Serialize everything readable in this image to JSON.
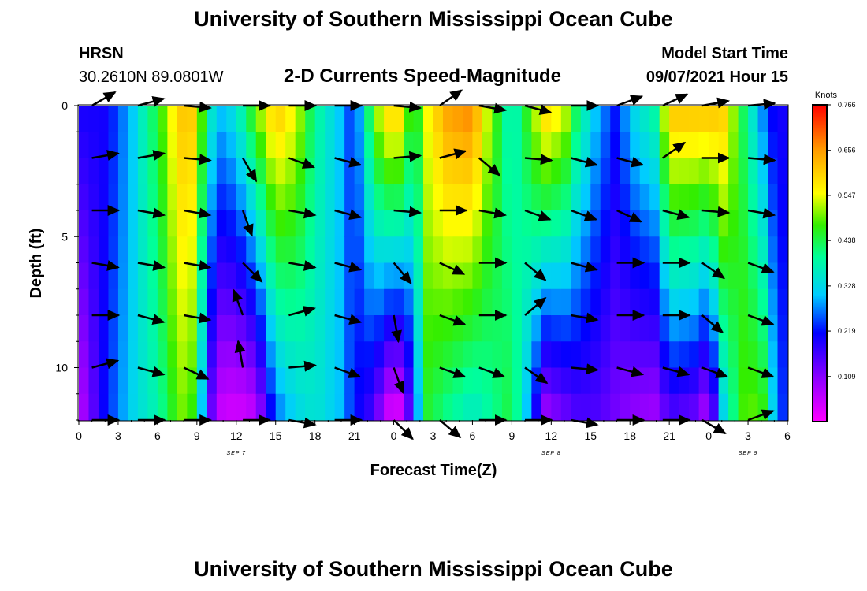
{
  "header": {
    "title": "University of Southern Mississippi Ocean Cube",
    "station_code": "HRSN",
    "coords": "30.2610N  89.0801W",
    "subtitle": "2-D Currents Speed-Magnitude",
    "model_start_label": "Model Start Time",
    "model_start_value": "09/07/2021 Hour 15",
    "footer_title": "University of Southern Mississippi Ocean Cube"
  },
  "chart_data": {
    "type": "heatmap",
    "title": "2-D Currents Speed-Magnitude",
    "xlabel": "Forecast Time(Z)",
    "ylabel": "Depth (ft)",
    "x_tick_labels": [
      "0",
      "3",
      "6",
      "9",
      "12",
      "15",
      "18",
      "21",
      "0",
      "3",
      "6",
      "9",
      "12",
      "15",
      "18",
      "21",
      "0",
      "3",
      "6"
    ],
    "date_labels": [
      "SEP 7",
      "SEP 8",
      "SEP 9"
    ],
    "date_label_tick_index": [
      4,
      12,
      17
    ],
    "y_tick_labels": [
      "0",
      "5",
      "10"
    ],
    "ylim": [
      0,
      12
    ],
    "x_hours": 54,
    "depths": [
      0,
      1,
      2,
      3,
      4,
      5,
      6,
      7,
      8,
      9,
      10,
      11,
      12
    ],
    "colorbar": {
      "title": "Knots",
      "min": 0,
      "max": 0.766,
      "tick_values": [
        0.109,
        0.219,
        0.328,
        0.438,
        0.547,
        0.656,
        0.766
      ],
      "tick_labels": [
        "0.109",
        "0.219",
        "0.328",
        "0.438",
        "0.547",
        "0.656",
        "0.766"
      ]
    },
    "speed_by_time": {
      "hours": [
        0,
        2,
        4,
        5,
        6,
        7,
        8,
        9,
        9.5,
        10.5,
        12,
        13.5,
        15,
        16.5,
        18,
        20,
        21,
        22.5,
        23.5,
        24.5,
        25.5,
        26.5,
        28,
        30,
        31,
        33,
        34.5,
        35.5,
        37,
        38,
        39.5,
        41,
        42,
        44,
        45,
        47,
        48,
        49,
        50.5,
        52,
        53,
        54
      ],
      "surface": [
        0.2,
        0.2,
        0.3,
        0.38,
        0.45,
        0.55,
        0.62,
        0.6,
        0.45,
        0.3,
        0.35,
        0.5,
        0.62,
        0.55,
        0.4,
        0.3,
        0.22,
        0.5,
        0.6,
        0.6,
        0.42,
        0.55,
        0.65,
        0.68,
        0.55,
        0.35,
        0.5,
        0.6,
        0.55,
        0.42,
        0.3,
        0.22,
        0.32,
        0.4,
        0.62,
        0.62,
        0.62,
        0.62,
        0.44,
        0.28,
        0.2,
        0.2
      ],
      "bottom": [
        0.05,
        0.22,
        0.32,
        0.35,
        0.38,
        0.45,
        0.5,
        0.45,
        0.25,
        0.05,
        0.03,
        0.05,
        0.25,
        0.32,
        0.35,
        0.3,
        0.22,
        0.15,
        0.03,
        0.02,
        0.2,
        0.45,
        0.4,
        0.35,
        0.38,
        0.45,
        0.25,
        0.08,
        0.12,
        0.15,
        0.15,
        0.12,
        0.1,
        0.08,
        0.15,
        0.12,
        0.05,
        0.3,
        0.48,
        0.5,
        0.3,
        0.2
      ]
    },
    "current_vectors": {
      "columns_hours": [
        1,
        4.5,
        8,
        12.5,
        16,
        19.5,
        24,
        27.5,
        30.5,
        34,
        37.5,
        41,
        44.5,
        47.5,
        51
      ],
      "rows_depth": [
        0,
        2,
        4,
        6,
        8,
        10,
        12
      ],
      "direction_deg": [
        [
          -30,
          -15,
          5,
          0,
          0,
          0,
          5,
          -35,
          10,
          15,
          0,
          -20,
          -25,
          -10,
          -5
        ],
        [
          -10,
          -10,
          5,
          60,
          20,
          15,
          -5,
          -15,
          40,
          5,
          15,
          15,
          -35,
          0,
          5
        ],
        [
          0,
          10,
          10,
          70,
          10,
          15,
          5,
          0,
          10,
          20,
          20,
          25,
          15,
          5,
          10
        ],
        [
          10,
          10,
          10,
          45,
          10,
          15,
          50,
          25,
          0,
          40,
          15,
          0,
          0,
          35,
          20
        ],
        [
          0,
          15,
          10,
          -110,
          -15,
          15,
          80,
          20,
          0,
          -40,
          10,
          0,
          0,
          40,
          20
        ],
        [
          -15,
          15,
          25,
          -100,
          -5,
          20,
          70,
          20,
          20,
          35,
          5,
          15,
          15,
          20,
          20
        ],
        [
          0,
          0,
          0,
          0,
          10,
          0,
          45,
          40,
          0,
          0,
          10,
          0,
          0,
          30,
          -20
        ]
      ]
    }
  }
}
